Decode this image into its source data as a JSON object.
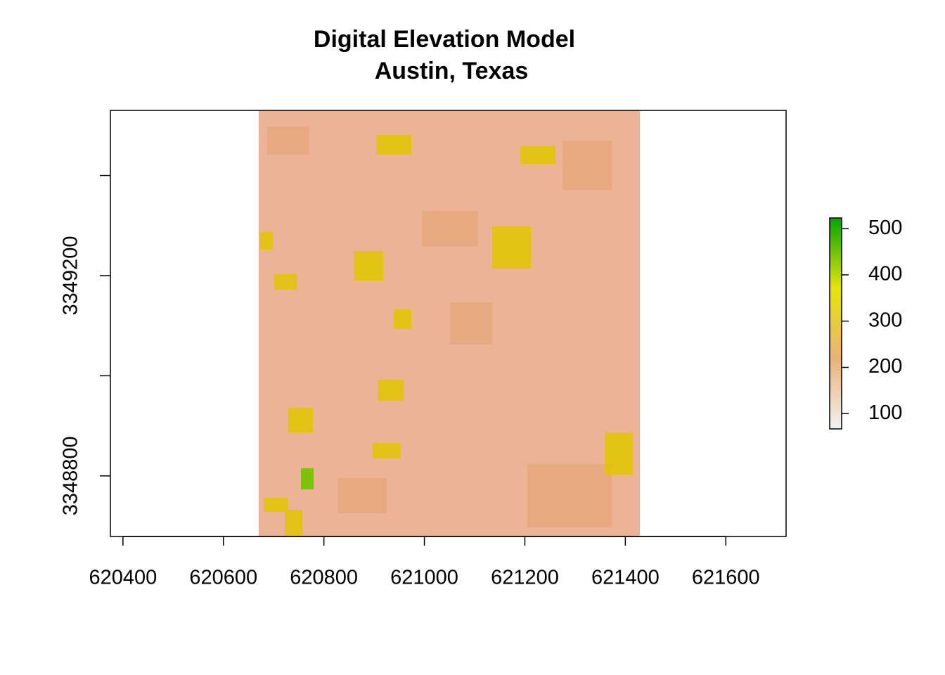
{
  "chart_data": {
    "type": "raster",
    "title": "Digital Elevation Model",
    "subtitle": "Austin, Texas",
    "xlim": [
      620375,
      621720
    ],
    "ylim": [
      3348679,
      3349530
    ],
    "xticks": [
      620400,
      620600,
      620800,
      621000,
      621200,
      621400,
      621600
    ],
    "yticks": [
      {
        "value": 3348800,
        "label": "3348800"
      },
      {
        "value": 3349000,
        "label": null
      },
      {
        "value": 3349200,
        "label": "3349200"
      },
      {
        "value": 3349400,
        "label": null
      }
    ],
    "raster": {
      "xlim": [
        620670,
        621429
      ],
      "ylim": [
        3348679,
        3349530
      ],
      "color": "#ecb396"
    },
    "colorbar": {
      "zlim": [
        67,
        523
      ],
      "ticks": [
        100,
        200,
        300,
        400,
        500
      ],
      "colors": [
        "#f2f2f2",
        "#ecb176",
        "#e6e600",
        "#00a600"
      ]
    }
  }
}
